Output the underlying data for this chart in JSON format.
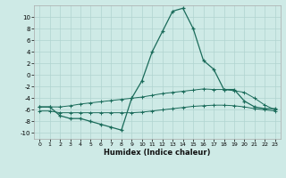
{
  "xlabel": "Humidex (Indice chaleur)",
  "background_color": "#ceeae6",
  "grid_color": "#b0d4d0",
  "line_color": "#1a6b5a",
  "xlim": [
    -0.5,
    23.5
  ],
  "ylim": [
    -11,
    12
  ],
  "yticks": [
    -10,
    -8,
    -6,
    -4,
    -2,
    0,
    2,
    4,
    6,
    8,
    10
  ],
  "xticks": [
    0,
    1,
    2,
    3,
    4,
    5,
    6,
    7,
    8,
    9,
    10,
    11,
    12,
    13,
    14,
    15,
    16,
    17,
    18,
    19,
    20,
    21,
    22,
    23
  ],
  "series": {
    "main": {
      "x": [
        0,
        1,
        2,
        3,
        4,
        5,
        6,
        7,
        8,
        9,
        10,
        11,
        12,
        13,
        14,
        15,
        16,
        17,
        18,
        19,
        20,
        21,
        22,
        23
      ],
      "y": [
        -5.5,
        -5.5,
        -7.0,
        -7.5,
        -7.5,
        -8.0,
        -8.5,
        -9.0,
        -9.5,
        -4.0,
        -1.0,
        4.0,
        7.5,
        11.0,
        11.5,
        8.0,
        2.5,
        1.0,
        -2.5,
        -2.5,
        -4.5,
        -5.5,
        -5.8,
        -5.8
      ]
    },
    "upper_band": {
      "x": [
        0,
        1,
        2,
        3,
        4,
        5,
        6,
        7,
        8,
        9,
        10,
        11,
        12,
        13,
        14,
        15,
        16,
        17,
        18,
        19,
        20,
        21,
        22,
        23
      ],
      "y": [
        -5.5,
        -5.5,
        -5.5,
        -5.3,
        -5.0,
        -4.8,
        -4.6,
        -4.4,
        -4.2,
        -4.0,
        -3.8,
        -3.5,
        -3.2,
        -3.0,
        -2.8,
        -2.6,
        -2.4,
        -2.5,
        -2.5,
        -2.7,
        -3.0,
        -4.0,
        -5.2,
        -6.0
      ]
    },
    "lower_band": {
      "x": [
        0,
        1,
        2,
        3,
        4,
        5,
        6,
        7,
        8,
        9,
        10,
        11,
        12,
        13,
        14,
        15,
        16,
        17,
        18,
        19,
        20,
        21,
        22,
        23
      ],
      "y": [
        -6.2,
        -6.2,
        -6.5,
        -6.5,
        -6.5,
        -6.5,
        -6.5,
        -6.5,
        -6.5,
        -6.5,
        -6.4,
        -6.2,
        -6.0,
        -5.8,
        -5.6,
        -5.4,
        -5.3,
        -5.2,
        -5.2,
        -5.3,
        -5.5,
        -5.8,
        -6.0,
        -6.2
      ]
    }
  }
}
